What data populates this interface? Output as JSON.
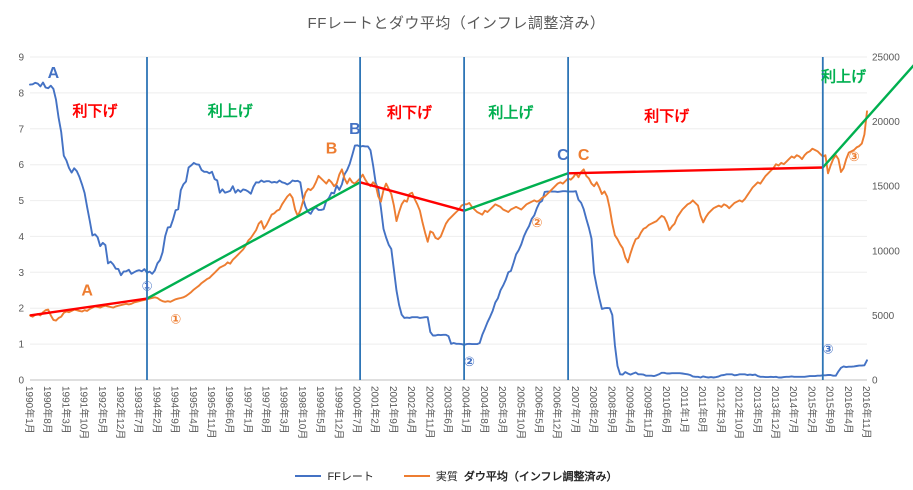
{
  "chart_data": {
    "type": "line",
    "title": "FFレートとダウ平均（インフレ調整済み）",
    "x_axis": {
      "total_months": 322,
      "tick_step_months": 7,
      "tick_labels": [
        "1990年1月",
        "1990年8月",
        "1991年3月",
        "1991年10月",
        "1992年5月",
        "1992年12月",
        "1993年7月",
        "1994年2月",
        "1994年9月",
        "1995年4月",
        "1995年11月",
        "1996年6月",
        "1997年1月",
        "1997年8月",
        "1998年3月",
        "1998年10月",
        "1999年5月",
        "1999年12月",
        "2000年7月",
        "2001年2月",
        "2001年9月",
        "2002年4月",
        "2002年11月",
        "2003年6月",
        "2004年1月",
        "2004年8月",
        "2005年3月",
        "2005年10月",
        "2006年5月",
        "2006年12月",
        "2007年7月",
        "2008年2月",
        "2008年9月",
        "2009年4月",
        "2009年11月",
        "2010年6月",
        "2011年1月",
        "2011年8月",
        "2012年3月",
        "2012年10月",
        "2013年5月",
        "2013年12月",
        "2014年7月",
        "2015年2月",
        "2015年9月",
        "2016年4月",
        "2016年11月"
      ]
    },
    "y_left": {
      "min": 0,
      "max": 9,
      "ticks": [
        0,
        1,
        2,
        3,
        4,
        5,
        6,
        7,
        8,
        9
      ]
    },
    "y_right": {
      "min": 0,
      "max": 25000,
      "ticks": [
        0,
        5000,
        10000,
        15000,
        20000,
        25000
      ]
    },
    "series": [
      {
        "id": "ff-rate",
        "name": "FFレート",
        "axis": "left",
        "color": "#4472C4",
        "values": [
          8.23,
          8.24,
          8.28,
          8.26,
          8.18,
          8.29,
          8.15,
          8.13,
          8.2,
          8.11,
          7.81,
          7.31,
          6.91,
          6.25,
          6.12,
          5.91,
          5.78,
          5.9,
          5.82,
          5.66,
          5.45,
          5.21,
          4.81,
          4.43,
          4.03,
          4.06,
          3.98,
          3.73,
          3.82,
          3.76,
          3.25,
          3.3,
          3.22,
          3.1,
          3.09,
          2.92,
          3.02,
          3.03,
          3.07,
          2.96,
          3.0,
          3.04,
          3.06,
          3.03,
          3.09,
          2.99,
          3.02,
          2.96,
          3.05,
          3.25,
          3.34,
          3.56,
          4.01,
          4.25,
          4.26,
          4.47,
          4.73,
          4.76,
          5.29,
          5.45,
          5.53,
          5.92,
          5.98,
          6.05,
          6.01,
          6.0,
          5.85,
          5.8,
          5.8,
          5.76,
          5.8,
          5.6,
          5.56,
          5.22,
          5.31,
          5.22,
          5.24,
          5.27,
          5.4,
          5.22,
          5.3,
          5.24,
          5.31,
          5.29,
          5.25,
          5.19,
          5.39,
          5.51,
          5.5,
          5.56,
          5.52,
          5.54,
          5.54,
          5.5,
          5.52,
          5.5,
          5.56,
          5.51,
          5.49,
          5.45,
          5.49,
          5.56,
          5.54,
          5.55,
          5.51,
          5.07,
          4.83,
          4.68,
          4.63,
          4.76,
          4.81,
          4.74,
          4.74,
          4.76,
          4.99,
          5.07,
          5.22,
          5.2,
          5.42,
          5.3,
          5.45,
          5.73,
          5.85,
          6.02,
          6.27,
          6.53,
          6.54,
          6.5,
          6.52,
          6.51,
          6.51,
          6.4,
          5.98,
          5.49,
          5.31,
          4.8,
          4.21,
          3.97,
          3.77,
          3.65,
          3.07,
          2.49,
          2.09,
          1.82,
          1.73,
          1.74,
          1.73,
          1.75,
          1.75,
          1.75,
          1.73,
          1.74,
          1.75,
          1.75,
          1.34,
          1.24,
          1.24,
          1.26,
          1.25,
          1.26,
          1.26,
          1.22,
          1.01,
          1.03,
          1.01,
          1.01,
          1.0,
          0.98,
          1.0,
          1.01,
          1.0,
          1.0,
          1.0,
          1.03,
          1.26,
          1.43,
          1.61,
          1.76,
          1.93,
          2.16,
          2.28,
          2.5,
          2.63,
          2.79,
          3.0,
          3.04,
          3.26,
          3.5,
          3.62,
          3.78,
          4.0,
          4.16,
          4.29,
          4.49,
          4.59,
          4.79,
          4.94,
          4.99,
          5.24,
          5.25,
          5.25,
          5.25,
          5.25,
          5.24,
          5.25,
          5.26,
          5.26,
          5.25,
          5.25,
          5.25,
          5.26,
          5.02,
          4.94,
          4.76,
          4.49,
          4.24,
          3.94,
          2.98,
          2.61,
          2.28,
          1.98,
          2.0,
          2.01,
          2.0,
          1.81,
          0.97,
          0.39,
          0.16,
          0.15,
          0.22,
          0.18,
          0.15,
          0.18,
          0.21,
          0.16,
          0.16,
          0.15,
          0.12,
          0.12,
          0.12,
          0.11,
          0.13,
          0.16,
          0.2,
          0.2,
          0.18,
          0.18,
          0.19,
          0.19,
          0.19,
          0.19,
          0.18,
          0.17,
          0.16,
          0.14,
          0.1,
          0.09,
          0.09,
          0.07,
          0.1,
          0.08,
          0.07,
          0.08,
          0.07,
          0.08,
          0.1,
          0.13,
          0.14,
          0.16,
          0.16,
          0.16,
          0.13,
          0.14,
          0.16,
          0.16,
          0.16,
          0.14,
          0.15,
          0.14,
          0.15,
          0.11,
          0.09,
          0.09,
          0.08,
          0.08,
          0.09,
          0.08,
          0.09,
          0.07,
          0.07,
          0.08,
          0.09,
          0.09,
          0.1,
          0.09,
          0.09,
          0.09,
          0.09,
          0.09,
          0.1,
          0.11,
          0.11,
          0.11,
          0.12,
          0.12,
          0.13,
          0.13,
          0.14,
          0.14,
          0.12,
          0.12,
          0.24,
          0.34,
          0.38,
          0.36,
          0.37,
          0.37,
          0.38,
          0.39,
          0.4,
          0.4,
          0.41,
          0.55
        ]
      },
      {
        "id": "dow-real",
        "name": "実質ダウ平均（インフレ調整済み）",
        "axis": "right",
        "color": "#ED7D31",
        "values": [
          5000,
          4900,
          5050,
          5100,
          5000,
          5250,
          5400,
          5450,
          5000,
          4650,
          4600,
          4800,
          4900,
          5200,
          5300,
          5250,
          5350,
          5450,
          5400,
          5350,
          5300,
          5400,
          5350,
          5500,
          5600,
          5700,
          5650,
          5600,
          5700,
          5750,
          5700,
          5650,
          5600,
          5700,
          5750,
          5800,
          5850,
          5900,
          5850,
          5900,
          6000,
          6050,
          6100,
          6150,
          6200,
          6250,
          6300,
          6350,
          6400,
          6350,
          6200,
          6100,
          6050,
          6100,
          6050,
          6150,
          6250,
          6300,
          6350,
          6400,
          6500,
          6650,
          6800,
          7000,
          7150,
          7300,
          7500,
          7650,
          7800,
          7900,
          8100,
          8300,
          8500,
          8700,
          8800,
          8900,
          9100,
          9000,
          9300,
          9500,
          9700,
          9900,
          10100,
          10400,
          10800,
          11000,
          11300,
          11600,
          12100,
          12300,
          11700,
          12000,
          12400,
          12800,
          12900,
          13100,
          13200,
          13600,
          13900,
          14200,
          14400,
          14100,
          13200,
          12700,
          13100,
          13800,
          14500,
          14800,
          14700,
          14900,
          15300,
          15800,
          15600,
          15400,
          15200,
          15500,
          15300,
          15000,
          15200,
          15900,
          16300,
          15600,
          15200,
          15600,
          15300,
          15200,
          15400,
          15600,
          15900,
          15500,
          15200,
          15000,
          15300,
          15100,
          14200,
          13800,
          14700,
          15200,
          14800,
          14400,
          13500,
          12300,
          13000,
          13600,
          13900,
          13800,
          14400,
          14500,
          14000,
          13600,
          13100,
          12200,
          11400,
          10700,
          11500,
          11400,
          11000,
          10900,
          11100,
          11600,
          12100,
          12400,
          12600,
          12800,
          13000,
          13200,
          13500,
          13600,
          13600,
          13700,
          13400,
          13200,
          13000,
          12900,
          12800,
          13100,
          13000,
          13200,
          13400,
          13600,
          13500,
          13400,
          13200,
          13100,
          13000,
          13200,
          13300,
          13400,
          13300,
          13200,
          13400,
          13600,
          13700,
          13800,
          13900,
          13800,
          13900,
          14100,
          14200,
          14400,
          14600,
          14800,
          15000,
          15200,
          15300,
          15200,
          15400,
          15600,
          15500,
          15700,
          16000,
          15700,
          16100,
          16300,
          15800,
          15600,
          15200,
          15000,
          15300,
          14900,
          14400,
          14600,
          14200,
          13300,
          12100,
          11200,
          10900,
          10500,
          10200,
          9500,
          9100,
          9800,
          10400,
          10900,
          11000,
          11400,
          11700,
          11800,
          12000,
          12100,
          12200,
          12300,
          12500,
          12700,
          12600,
          12200,
          11600,
          11900,
          12100,
          12600,
          12900,
          13200,
          13400,
          13600,
          13700,
          13900,
          13700,
          13500,
          12700,
          12200,
          12600,
          12900,
          13100,
          13300,
          13400,
          13500,
          13400,
          13600,
          13500,
          13300,
          13500,
          13700,
          13800,
          13900,
          13800,
          14000,
          14300,
          14600,
          14900,
          15100,
          15300,
          15200,
          15500,
          15800,
          16000,
          16200,
          16400,
          16700,
          16600,
          16800,
          16700,
          16900,
          17100,
          17300,
          17200,
          17400,
          17300,
          17100,
          17400,
          17600,
          17700,
          17900,
          17800,
          17700,
          17500,
          17300,
          17400,
          16000,
          16600,
          17100,
          17400,
          17100,
          16100,
          16400,
          17100,
          17600,
          17700,
          17800,
          18000,
          18100,
          18300,
          19000,
          20800
        ]
      }
    ],
    "trend_segments": [
      {
        "color": "#FF0000",
        "from": [
          0,
          5000
        ],
        "to": [
          45,
          6300
        ]
      },
      {
        "color": "#00B050",
        "from": [
          45,
          6300
        ],
        "to": [
          127,
          15300
        ]
      },
      {
        "color": "#FF0000",
        "from": [
          127,
          15300
        ],
        "to": [
          167,
          13100
        ]
      },
      {
        "color": "#00B050",
        "from": [
          167,
          13100
        ],
        "to": [
          207,
          16000
        ]
      },
      {
        "color": "#FF0000",
        "from": [
          207,
          16000
        ],
        "to": [
          305,
          16450
        ]
      },
      {
        "color": "#00B050",
        "from": [
          305,
          16450
        ],
        "to": [
          341,
          24600
        ]
      }
    ],
    "event_lines": {
      "color": "#2E75B6",
      "months": [
        45,
        127,
        167,
        207,
        305
      ]
    },
    "phase_labels": [
      {
        "text": "利下げ",
        "x": 25,
        "y": 7.5,
        "color": "#FF0000"
      },
      {
        "text": "利上げ",
        "x": 77,
        "y": 7.5,
        "color": "#00B050"
      },
      {
        "text": "利下げ",
        "x": 146,
        "y": 7.45,
        "color": "#FF0000"
      },
      {
        "text": "利上げ",
        "x": 185,
        "y": 7.45,
        "color": "#00B050"
      },
      {
        "text": "利下げ",
        "x": 245,
        "y": 7.35,
        "color": "#FF0000"
      },
      {
        "text": "利上げ",
        "x": 313,
        "y": 8.45,
        "color": "#00B050"
      }
    ],
    "annotations": [
      {
        "id": "A-ff",
        "text": "A",
        "x": 9,
        "y": 8.55,
        "color": "#4472C4"
      },
      {
        "id": "A-dow",
        "text": "A",
        "x": 22,
        "y": 2.5,
        "color": "#ED7D31"
      },
      {
        "id": "B-ff",
        "text": "B",
        "x": 125,
        "y": 7.0,
        "color": "#4472C4"
      },
      {
        "id": "B-dow",
        "text": "B",
        "x": 116,
        "y": 6.45,
        "color": "#ED7D31"
      },
      {
        "id": "C-ff",
        "text": "C",
        "x": 205,
        "y": 6.27,
        "color": "#4472C4"
      },
      {
        "id": "C-dow",
        "text": "C",
        "x": 213,
        "y": 6.27,
        "color": "#ED7D31"
      },
      {
        "id": "1-ff",
        "text": "①",
        "x": 45,
        "y": 2.63,
        "color": "#4472C4",
        "size": 13
      },
      {
        "id": "1-dow",
        "text": "①",
        "x": 56,
        "y": 1.72,
        "color": "#ED7D31",
        "size": 13
      },
      {
        "id": "2-ff",
        "text": "②",
        "x": 169,
        "y": 0.53,
        "color": "#4472C4",
        "size": 13
      },
      {
        "id": "2-dow",
        "text": "②",
        "x": 195,
        "y": 4.4,
        "color": "#ED7D31",
        "size": 13
      },
      {
        "id": "3-ff",
        "text": "③",
        "x": 307,
        "y": 0.88,
        "color": "#4472C4",
        "size": 13
      },
      {
        "id": "3-dow",
        "text": "③",
        "x": 317,
        "y": 6.24,
        "color": "#ED7D31",
        "size": 13
      }
    ],
    "legend": [
      {
        "label": "FFレート",
        "color": "#4472C4"
      },
      {
        "prefix": "実質 ",
        "label": "ダウ平均（インフレ調整済み）",
        "color": "#ED7D31"
      }
    ]
  }
}
